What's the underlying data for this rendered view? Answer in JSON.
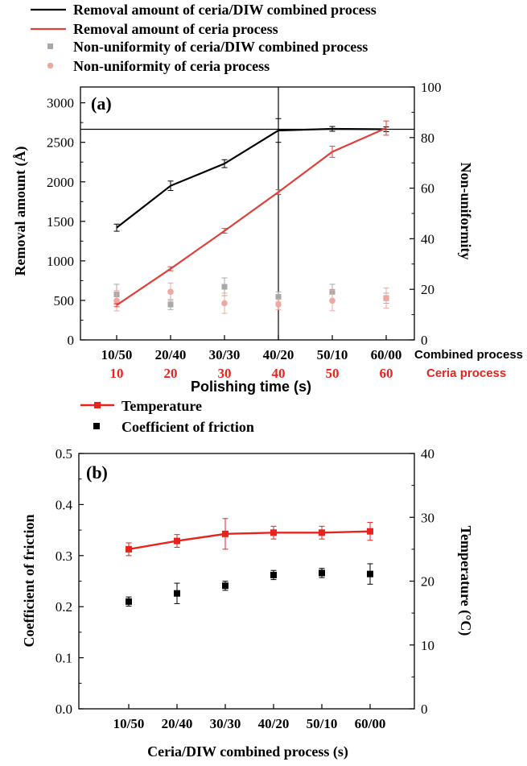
{
  "chart_data": [
    {
      "type": "line",
      "panel_label": "(a)",
      "xlabel": "Polishing time (s)",
      "ylabel": "Removal amount (Å)",
      "y2label": "Non-uniformity",
      "categories": [
        "10/50",
        "20/40",
        "30/30",
        "40/20",
        "50/10",
        "60/00"
      ],
      "categories_secondary": [
        "10",
        "20",
        "30",
        "40",
        "50",
        "60"
      ],
      "x_row_labels": [
        "Combined process",
        "Ceria process"
      ],
      "ylim": [
        0,
        3200
      ],
      "y2lim": [
        0,
        100
      ],
      "yticks": [
        "0",
        "500",
        "1000",
        "1500",
        "2000",
        "2500",
        "3000"
      ],
      "y2ticks": [
        "0",
        "20",
        "40",
        "60",
        "80",
        "100"
      ],
      "reference_lines": {
        "horizontal_y": 2665,
        "vertical_x": "40/20"
      },
      "colors": {
        "combined_line": "#000000",
        "ceria_line": "#e0403a",
        "combined_nonuniformity": "#a8a8a8",
        "ceria_nonuniformity": "#f1a7a1",
        "ceria_axis_text": "#e8221c"
      },
      "series": [
        {
          "name": "Removal amount of ceria/DIW combined process",
          "kind": "line",
          "axis": "left",
          "values": [
            1420,
            1950,
            2230,
            2650,
            2670,
            2665
          ],
          "errors": [
            45,
            60,
            50,
            150,
            30,
            30
          ]
        },
        {
          "name": "Removal amount of ceria process",
          "kind": "line",
          "axis": "left",
          "values": [
            440,
            900,
            1380,
            1870,
            2380,
            2680
          ],
          "errors": [
            20,
            25,
            30,
            30,
            70,
            90
          ]
        },
        {
          "name": "Non-uniformity of ceria/DIW combined process",
          "kind": "scatter",
          "marker": "square",
          "axis": "right",
          "values": [
            18,
            14,
            21,
            17,
            19,
            16.5
          ],
          "errors": [
            4,
            2,
            3.5,
            2,
            3,
            2
          ]
        },
        {
          "name": "Non-uniformity of ceria process",
          "kind": "scatter",
          "marker": "circle",
          "axis": "right",
          "values": [
            15.5,
            19,
            14.5,
            14,
            15.5,
            16.5
          ],
          "errors": [
            4,
            3.5,
            4,
            2,
            4,
            4
          ]
        }
      ]
    },
    {
      "type": "line",
      "panel_label": "(b)",
      "xlabel": "Ceria/DIW combined process (s)",
      "ylabel": "Coefficient of friction",
      "y2label": "Temperature (°C)",
      "categories": [
        "10/50",
        "20/40",
        "30/30",
        "40/20",
        "50/10",
        "60/00"
      ],
      "ylim": [
        0,
        0.5
      ],
      "y2lim": [
        0,
        40
      ],
      "yticks": [
        "0.0",
        "0.1",
        "0.2",
        "0.3",
        "0.4",
        "0.5"
      ],
      "y2ticks": [
        "0",
        "10",
        "20",
        "30",
        "40"
      ],
      "colors": {
        "temperature": "#e8221c",
        "friction": "#000000"
      },
      "series": [
        {
          "name": "Temperature",
          "kind": "line",
          "marker": "square",
          "axis": "right",
          "values": [
            25.0,
            26.3,
            27.4,
            27.6,
            27.6,
            27.8
          ],
          "errors": [
            1.0,
            1.0,
            2.4,
            1.0,
            1.0,
            1.4
          ]
        },
        {
          "name": "Coefficient of friction",
          "kind": "scatter",
          "marker": "square",
          "axis": "left",
          "values": [
            0.21,
            0.226,
            0.241,
            0.262,
            0.266,
            0.264
          ],
          "errors": [
            0.009,
            0.02,
            0.009,
            0.009,
            0.009,
            0.02
          ]
        }
      ]
    }
  ]
}
